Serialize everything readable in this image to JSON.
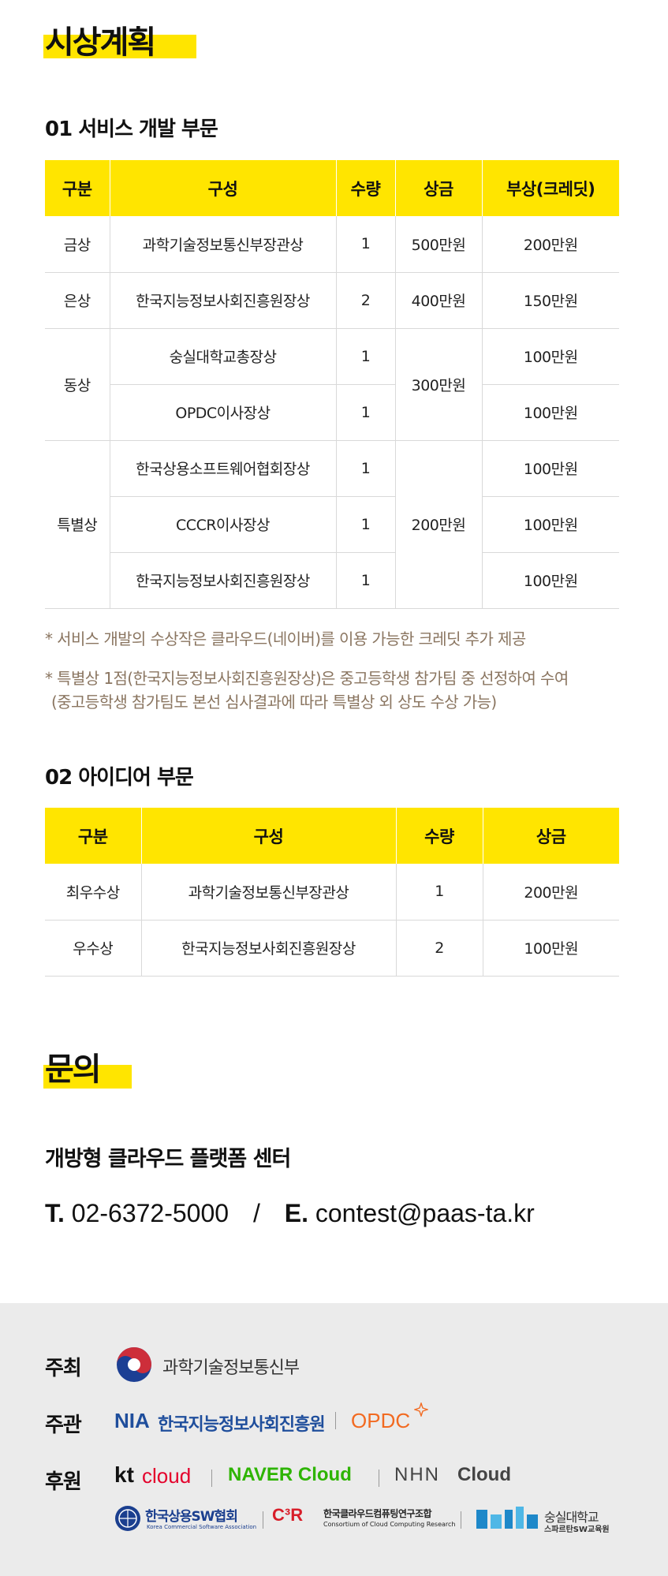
{
  "award_plan": {
    "heading": "시상계획",
    "service": {
      "title": "01 서비스 개발 부문",
      "headers": [
        "구분",
        "구성",
        "수량",
        "상금",
        "부상(크레딧)"
      ],
      "rows": [
        {
          "category": "금상",
          "organizer": "과학기술정보통신부장관상",
          "qty": "1",
          "prize": "500만원",
          "credit": "200만원"
        },
        {
          "category": "은상",
          "organizer": "한국지능정보사회진흥원장상",
          "qty": "2",
          "prize": "400만원",
          "credit": "150만원"
        },
        {
          "category": "동상",
          "organizer": "숭실대학교총장상",
          "qty": "1",
          "prize": "300만원",
          "credit": "100만원"
        },
        {
          "category": "",
          "organizer": "OPDC이사장상",
          "qty": "1",
          "prize": "",
          "credit": "100만원"
        },
        {
          "category": "특별상",
          "organizer": "한국상용소프트웨어협회장상",
          "qty": "1",
          "prize": "200만원",
          "credit": "100만원"
        },
        {
          "category": "",
          "organizer": "CCCR이사장상",
          "qty": "1",
          "prize": "",
          "credit": "100만원"
        },
        {
          "category": "",
          "organizer": "한국지능정보사회진흥원장상",
          "qty": "1",
          "prize": "",
          "credit": "100만원"
        }
      ],
      "notes": [
        "* 서비스 개발의 수상작은 클라우드(네이버)를 이용 가능한 크레딧 추가 제공",
        "* 특별상 1점(한국지능정보사회진흥원장상)은 중고등학생 참가팀 중 선정하여 수여",
        "(중고등학생 참가팀도 본선 심사결과에 따라 특별상 외 상도 수상 가능)"
      ]
    },
    "idea": {
      "title": "02 아이디어 부문",
      "headers": [
        "구분",
        "구성",
        "수량",
        "상금"
      ],
      "rows": [
        {
          "category": "최우수상",
          "organizer": "과학기술정보통신부장관상",
          "qty": "1",
          "prize": "200만원"
        },
        {
          "category": "우수상",
          "organizer": "한국지능정보사회진흥원장상",
          "qty": "2",
          "prize": "100만원"
        }
      ]
    }
  },
  "inquiry": {
    "heading": "문의",
    "org": "개방형 클라우드 플랫폼 센터",
    "tel_label": "T.",
    "tel": "02-6372-5000",
    "separator": "/",
    "email_label": "E.",
    "email": "contest@paas-ta.kr"
  },
  "footer": {
    "host_label": "주최",
    "host": "과학기술정보통신부",
    "organizer_label": "주관",
    "organizer_nia_mark": "NIA",
    "organizer_nia": "한국지능정보사회진흥원",
    "organizer_opdc": "OPDC",
    "sponsor_label": "후원",
    "sponsor_kt_mark": "kt",
    "sponsor_kt": "cloud",
    "sponsor_naver": "NAVER Cloud",
    "sponsor_nhn_mark": "NHN",
    "sponsor_nhn": "Cloud",
    "sponsor_ksa": "한국상용SW협회",
    "sponsor_ksa_en": "Korea Commercial Software Association",
    "sponsor_c3r_mark": "C³R",
    "sponsor_c3r": "한국클라우드컴퓨팅연구조합",
    "sponsor_c3r_en": "Consortium of Cloud Computing Research",
    "sponsor_ssu": "숭실대학교",
    "sponsor_ssu_sub": "스파르탄SW교육원",
    "colors": {
      "yellow": "#ffe500",
      "note": "#8a7560",
      "footer_bg": "#ebebeb",
      "nia_blue": "#1f4e9c",
      "opdc_orange": "#f26a21",
      "kt_red": "#e4002b",
      "naver_green": "#2db400",
      "ksa_blue": "#1b3f8f",
      "ssu_blue": "#1e88c9"
    }
  }
}
